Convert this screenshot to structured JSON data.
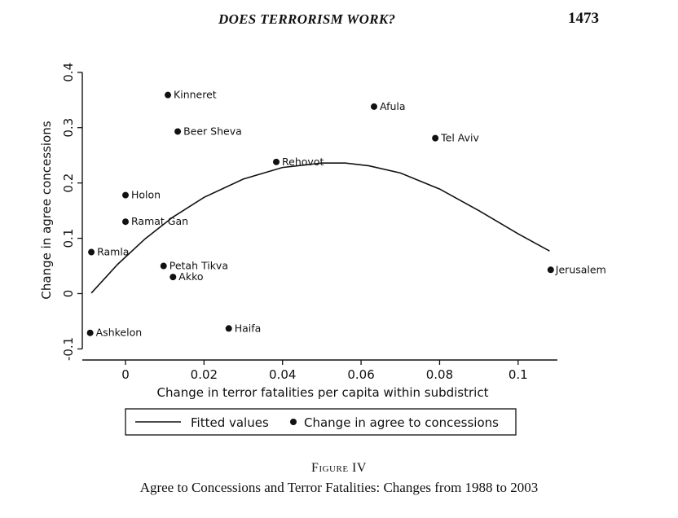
{
  "header": {
    "running_head": "DOES TERRORISM WORK?",
    "page_number": "1473"
  },
  "figure": {
    "label": "Figure IV",
    "caption": "Agree to Concessions and Terror Fatalities: Changes from 1988 to 2003"
  },
  "chart_data": {
    "type": "scatter",
    "xlabel": "Change in terror fatalities per capita within subdistrict",
    "ylabel": "Change in agree concessions",
    "xlim": [
      -0.011,
      0.11
    ],
    "ylim": [
      -0.12,
      0.41
    ],
    "x_ticks": [
      0,
      0.02,
      0.04,
      0.06,
      0.08,
      0.1
    ],
    "x_tick_labels": [
      "0",
      "0.02",
      "0.04",
      "0.06",
      "0.08",
      "0.1"
    ],
    "y_ticks": [
      -0.1,
      0,
      0.1,
      0.2,
      0.3,
      0.4
    ],
    "y_tick_labels": [
      "-0.1",
      "0",
      "0.1",
      "0.2",
      "0.3",
      "0.4"
    ],
    "grid": false,
    "legend_position": "bottom",
    "series": [
      {
        "name": "Change in agree to concessions",
        "kind": "points",
        "points": [
          {
            "label": "Kinneret",
            "x": 0.0108,
            "y": 0.359
          },
          {
            "label": "Afula",
            "x": 0.0633,
            "y": 0.338
          },
          {
            "label": "Beer Sheva",
            "x": 0.0133,
            "y": 0.293
          },
          {
            "label": "Tel Aviv",
            "x": 0.0789,
            "y": 0.281
          },
          {
            "label": "Rehovot",
            "x": 0.0384,
            "y": 0.238
          },
          {
            "label": "Holon",
            "x": 0.0,
            "y": 0.178
          },
          {
            "label": "Ramat Gan",
            "x": 0.0,
            "y": 0.13
          },
          {
            "label": "Ramla",
            "x": -0.0087,
            "y": 0.075
          },
          {
            "label": "Petah Tikva",
            "x": 0.0097,
            "y": 0.05
          },
          {
            "label": "Akko",
            "x": 0.0121,
            "y": 0.03
          },
          {
            "label": "Jerusalem",
            "x": 0.1083,
            "y": 0.043
          },
          {
            "label": "Haifa",
            "x": 0.0263,
            "y": -0.063
          },
          {
            "label": "Ashkelon",
            "x": -0.009,
            "y": -0.071
          }
        ]
      },
      {
        "name": "Fitted values",
        "kind": "line",
        "x": [
          -0.0087,
          -0.002,
          0.005,
          0.012,
          0.02,
          0.03,
          0.04,
          0.05,
          0.056,
          0.062,
          0.07,
          0.08,
          0.09,
          0.1,
          0.108
        ],
        "y": [
          0.001,
          0.053,
          0.099,
          0.138,
          0.174,
          0.207,
          0.228,
          0.236,
          0.236,
          0.231,
          0.218,
          0.189,
          0.15,
          0.108,
          0.077
        ]
      }
    ],
    "legend": [
      {
        "name": "Fitted values",
        "symbol": "line"
      },
      {
        "name": "Change in agree to concessions",
        "symbol": "dot"
      }
    ],
    "colors": {
      "ink": "#111111"
    }
  }
}
